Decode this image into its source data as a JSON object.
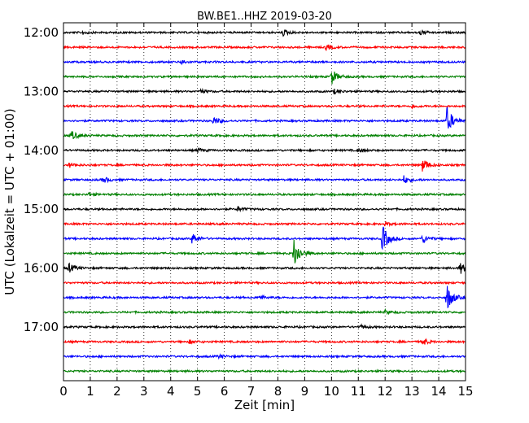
{
  "chart_data": {
    "type": "line",
    "title": "BW.BE1..HHZ 2019-03-20",
    "xlabel": "Zeit  [min]",
    "ylabel": "UTC (Lokalzeit = UTC + 01:00)",
    "xlim": [
      0,
      15
    ],
    "x_ticks": [
      "0",
      "1",
      "2",
      "3",
      "4",
      "5",
      "6",
      "7",
      "8",
      "9",
      "10",
      "11",
      "12",
      "13",
      "14",
      "15"
    ],
    "y_ticks": [
      "12:00",
      "13:00",
      "14:00",
      "15:00",
      "16:00",
      "17:00"
    ],
    "grid": "vertical dotted at each minute",
    "colors": [
      "#000000",
      "#ff0000",
      "#0000ff",
      "#008000"
    ],
    "trace_interval_minutes": 15,
    "traces": [
      {
        "start": "12:00",
        "color": "#000000",
        "events": [
          [
            0.7,
            0.3
          ],
          [
            8.2,
            0.5
          ],
          [
            13.3,
            0.4
          ]
        ]
      },
      {
        "start": "12:15",
        "color": "#ff0000",
        "events": [
          [
            9.8,
            0.5
          ]
        ]
      },
      {
        "start": "12:30",
        "color": "#0000ff",
        "events": [
          [
            4.4,
            0.4
          ]
        ]
      },
      {
        "start": "12:45",
        "color": "#008000",
        "events": [
          [
            10.0,
            1.4
          ]
        ]
      },
      {
        "start": "13:00",
        "color": "#000000",
        "events": [
          [
            5.1,
            0.4
          ],
          [
            10.1,
            0.4
          ]
        ]
      },
      {
        "start": "13:15",
        "color": "#ff0000",
        "events": [
          [
            13.0,
            0.3
          ]
        ]
      },
      {
        "start": "13:30",
        "color": "#0000ff",
        "events": [
          [
            5.6,
            0.7
          ],
          [
            14.3,
            2.5
          ]
        ]
      },
      {
        "start": "13:45",
        "color": "#008000",
        "events": [
          [
            0.3,
            0.8
          ]
        ]
      },
      {
        "start": "14:00",
        "color": "#000000",
        "events": [
          [
            5.0,
            0.4
          ],
          [
            11.0,
            0.4
          ]
        ]
      },
      {
        "start": "14:15",
        "color": "#ff0000",
        "events": [
          [
            0.2,
            0.4
          ],
          [
            13.4,
            1.3
          ]
        ]
      },
      {
        "start": "14:30",
        "color": "#0000ff",
        "events": [
          [
            1.5,
            0.5
          ],
          [
            12.7,
            0.7
          ]
        ]
      },
      {
        "start": "14:45",
        "color": "#008000",
        "events": [
          [
            0.9,
            0.3
          ]
        ]
      },
      {
        "start": "15:00",
        "color": "#000000",
        "events": [
          [
            6.5,
            0.4
          ]
        ]
      },
      {
        "start": "15:15",
        "color": "#ff0000",
        "events": [
          [
            12.0,
            0.3
          ]
        ]
      },
      {
        "start": "15:30",
        "color": "#0000ff",
        "events": [
          [
            4.8,
            1.0
          ],
          [
            11.9,
            2.5
          ],
          [
            13.4,
            0.8
          ]
        ]
      },
      {
        "start": "15:45",
        "color": "#008000",
        "events": [
          [
            8.6,
            2.8
          ]
        ]
      },
      {
        "start": "16:00",
        "color": "#000000",
        "events": [
          [
            0.2,
            0.8
          ],
          [
            14.8,
            1.0
          ]
        ]
      },
      {
        "start": "16:15",
        "color": "#ff0000",
        "events": []
      },
      {
        "start": "16:30",
        "color": "#0000ff",
        "events": [
          [
            7.3,
            0.4
          ],
          [
            14.3,
            2.5
          ]
        ]
      },
      {
        "start": "16:45",
        "color": "#008000",
        "events": [
          [
            12.0,
            0.3
          ]
        ]
      },
      {
        "start": "17:00",
        "color": "#000000",
        "events": [
          [
            11.1,
            0.3
          ]
        ]
      },
      {
        "start": "17:15",
        "color": "#ff0000",
        "events": [
          [
            4.7,
            0.3
          ],
          [
            13.4,
            0.6
          ]
        ]
      },
      {
        "start": "17:30",
        "color": "#0000ff",
        "events": [
          [
            5.8,
            0.3
          ]
        ]
      },
      {
        "start": "17:45",
        "color": "#008000",
        "events": []
      }
    ]
  }
}
